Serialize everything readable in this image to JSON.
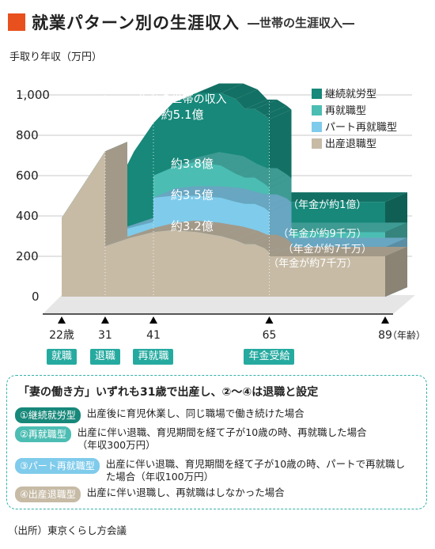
{
  "header": {
    "title": "就業パターン別の生涯収入",
    "subtitle": "―世帯の生涯収入―",
    "accent_color": "#e8501e"
  },
  "chart_data": {
    "type": "area",
    "ylabel": "手取り年収（万円）",
    "ylim": [
      0,
      1050
    ],
    "y_ticks": [
      "1,000",
      "800",
      "600",
      "400",
      "200",
      "0"
    ],
    "y_tick_values": [
      1000,
      800,
      600,
      400,
      200,
      0
    ],
    "x_unit": "（年齢）",
    "x_ticks": [
      "22歳",
      "31",
      "41",
      "65",
      "89"
    ],
    "x_tick_values": [
      22,
      31,
      41,
      65,
      89
    ],
    "series": [
      {
        "name": "継続就労型",
        "color": "#17887a",
        "x": [
          22,
          31,
          31.01,
          33,
          37,
          41,
          45,
          50,
          55,
          58,
          60,
          62,
          64,
          65,
          65.01,
          89
        ],
        "y": [
          390,
          720,
          460,
          530,
          720,
          860,
          960,
          1010,
          1010,
          980,
          930,
          930,
          900,
          880,
          470,
          470
        ],
        "lifetime_label": "生涯の世帯の収入",
        "lifetime_value": "約5.1億",
        "pension_label": "（年金が約1億）"
      },
      {
        "name": "再就職型",
        "color": "#4cbdb3",
        "x": [
          22,
          31,
          31.01,
          36,
          40.99,
          41,
          45,
          50,
          55,
          58,
          60,
          62,
          64,
          65,
          65.01,
          89
        ],
        "y": [
          390,
          720,
          300,
          340,
          370,
          600,
          640,
          670,
          650,
          610,
          590,
          590,
          560,
          540,
          320,
          320
        ],
        "lifetime_value": "約3.8億",
        "pension_label": "（年金が約9千万）"
      },
      {
        "name": "パート再就職型",
        "color": "#7fcbeb",
        "x": [
          22,
          31,
          31.01,
          36,
          40.99,
          41,
          45,
          50,
          55,
          58,
          60,
          62,
          64,
          65,
          65.01,
          89
        ],
        "y": [
          390,
          720,
          300,
          340,
          370,
          490,
          500,
          500,
          490,
          470,
          460,
          460,
          440,
          420,
          245,
          245
        ],
        "lifetime_value": "約3.5億",
        "pension_label": "（年金が約7千万）"
      },
      {
        "name": "出産退職型",
        "color": "#c7bba6",
        "x": [
          22,
          31,
          31.01,
          36,
          41,
          45,
          50,
          55,
          58,
          60,
          62,
          64,
          65,
          65.01,
          89
        ],
        "y": [
          390,
          720,
          250,
          290,
          320,
          330,
          320,
          300,
          280,
          260,
          260,
          240,
          220,
          200,
          200
        ],
        "lifetime_value": "約3.2億",
        "pension_label": "（年金が約7千万）"
      }
    ],
    "events": [
      {
        "age": 22,
        "label": "就職"
      },
      {
        "age": 31,
        "label": "退職"
      },
      {
        "age": 41,
        "label": "再就職"
      },
      {
        "age": 65,
        "label": "年金受給"
      }
    ],
    "legend": "top-right",
    "grid": true
  },
  "notes": {
    "heading": "「妻の働き方」いずれも31歳で出産し、②〜④は退職と設定",
    "definitions": [
      {
        "tag": "①継続就労型",
        "color": "#17887a",
        "text": "出産後に育児休業し、同じ職場で働き続けた場合"
      },
      {
        "tag": "②再就職型",
        "color": "#4cbdb3",
        "text": "出産に伴い退職、育児期間を経て子が10歳の時、再就職した場合（年収300万円）"
      },
      {
        "tag": "③パート再就職型",
        "color": "#7fcbeb",
        "text": "出産に伴い退職、育児期間を経て子が10歳の時、パートで再就職した場合（年収100万円）"
      },
      {
        "tag": "④出産退職型",
        "color": "#c7bba6",
        "text": "出産に伴い退職し、再就職はしなかった場合"
      }
    ]
  },
  "source": "（出所）東京くらし方会議"
}
